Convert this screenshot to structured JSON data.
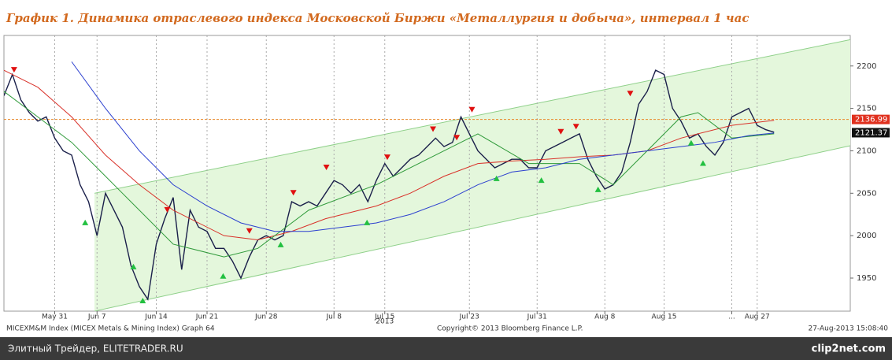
{
  "chart_data": {
    "type": "line",
    "title": "График 1.   Динамика отраслевого индекса Московской Биржи «Металлургия и добыча», интервал 1 час",
    "xlim": [
      0,
      100
    ],
    "ylim": [
      1911,
      2236
    ],
    "xticks": [
      {
        "value": 6,
        "label": "May 31"
      },
      {
        "value": 11,
        "label": "Jun 7"
      },
      {
        "value": 18,
        "label": "Jun 14"
      },
      {
        "value": 24,
        "label": "Jun 21"
      },
      {
        "value": 31,
        "label": "Jun 28"
      },
      {
        "value": 39,
        "label": "Jul 8"
      },
      {
        "value": 45,
        "label": "Jul 15"
      },
      {
        "value": 55,
        "label": "Jul 23"
      },
      {
        "value": 63,
        "label": "Jul 31"
      },
      {
        "value": 71,
        "label": "Aug 8"
      },
      {
        "value": 78,
        "label": "Aug 15"
      },
      {
        "value": 86,
        "label": "..."
      },
      {
        "value": 89,
        "label": "Aug 27"
      }
    ],
    "year_label": "2013",
    "yticks": [
      1950,
      2000,
      2050,
      2100,
      2150,
      2200
    ],
    "grid": true,
    "channel": {
      "color": "#e4f7dc",
      "edge": "#8fd08a",
      "x": [
        10.7,
        100
      ],
      "upper": [
        2050,
        2231
      ],
      "lower": [
        1911,
        2106
      ]
    },
    "series": [
      {
        "color": "#1a1f4a",
        "x": [
          0,
          1,
          2,
          3,
          4,
          5,
          6,
          7,
          8,
          9,
          10,
          11,
          12,
          13,
          14,
          15,
          16,
          17,
          18,
          19,
          20,
          21,
          22,
          23,
          24,
          25,
          26,
          27,
          28,
          29,
          30,
          31,
          32,
          33,
          34,
          35,
          36,
          37,
          38,
          39,
          40,
          41,
          42,
          43,
          44,
          45,
          46,
          47,
          48,
          49,
          50,
          51,
          52,
          53,
          54,
          55,
          56,
          57,
          58,
          59,
          60,
          61,
          62,
          63,
          64,
          65,
          66,
          67,
          68,
          69,
          70,
          71,
          72,
          73,
          74,
          75,
          76,
          77,
          78,
          79,
          80,
          81,
          82,
          83,
          84,
          85,
          86,
          87,
          88,
          89,
          90,
          91
        ],
        "values": [
          2165,
          2190,
          2160,
          2145,
          2135,
          2140,
          2115,
          2100,
          2095,
          2060,
          2040,
          2000,
          2050,
          2030,
          2010,
          1965,
          1940,
          1925,
          1990,
          2020,
          2045,
          1960,
          2030,
          2010,
          2005,
          1985,
          1985,
          1970,
          1950,
          1975,
          1995,
          2000,
          1995,
          2000,
          2040,
          2035,
          2040,
          2035,
          2050,
          2065,
          2060,
          2050,
          2060,
          2040,
          2065,
          2085,
          2070,
          2080,
          2090,
          2095,
          2105,
          2115,
          2105,
          2110,
          2140,
          2120,
          2100,
          2090,
          2080,
          2085,
          2090,
          2090,
          2080,
          2080,
          2100,
          2105,
          2110,
          2115,
          2120,
          2090,
          2070,
          2055,
          2060,
          2075,
          2110,
          2155,
          2170,
          2195,
          2190,
          2150,
          2135,
          2115,
          2120,
          2105,
          2095,
          2110,
          2140,
          2145,
          2150,
          2130,
          2125,
          2122
        ]
      },
      {
        "color": "#d9322a",
        "x": [
          0,
          4,
          8,
          12,
          16,
          20,
          26,
          30,
          34,
          38,
          44,
          48,
          52,
          56,
          60,
          64,
          68,
          72,
          76,
          80,
          86,
          91
        ],
        "values": [
          2195,
          2175,
          2140,
          2095,
          2060,
          2030,
          2000,
          1995,
          2005,
          2020,
          2035,
          2050,
          2070,
          2085,
          2088,
          2090,
          2093,
          2095,
          2100,
          2115,
          2130,
          2136
        ]
      },
      {
        "color": "#2f9a3a",
        "x": [
          0,
          4,
          8,
          14,
          20,
          26,
          30,
          36,
          44,
          52,
          56,
          62,
          68,
          72,
          76,
          80,
          82,
          86,
          91
        ],
        "values": [
          2170,
          2140,
          2110,
          2050,
          1990,
          1975,
          1985,
          2030,
          2060,
          2100,
          2120,
          2085,
          2085,
          2060,
          2100,
          2140,
          2145,
          2115,
          2120
        ]
      },
      {
        "color": "#2b3fcf",
        "x": [
          8,
          12,
          16,
          20,
          24,
          28,
          32,
          36,
          40,
          44,
          48,
          52,
          56,
          60,
          64,
          68,
          72,
          76,
          80,
          84,
          88,
          91
        ],
        "values": [
          2205,
          2150,
          2100,
          2060,
          2035,
          2015,
          2005,
          2005,
          2010,
          2015,
          2025,
          2040,
          2060,
          2075,
          2080,
          2090,
          2095,
          2100,
          2105,
          2110,
          2118,
          2121
        ]
      }
    ],
    "sell_signals": {
      "color": "#e01010",
      "x": [
        1.2,
        19.3,
        29,
        34.2,
        38.1,
        45.3,
        50.7,
        53.5,
        55.3,
        65.8,
        67.6,
        74
      ],
      "values": [
        2195,
        2030,
        2005,
        2050,
        2080,
        2092,
        2125,
        2115,
        2148,
        2122,
        2128,
        2167
      ]
    },
    "buy_signals": {
      "color": "#22c040",
      "x": [
        9.6,
        16.4,
        15.3,
        25.9,
        32.7,
        42.9,
        58.2,
        63.5,
        70.2,
        81.2,
        82.6
      ],
      "values": [
        2016,
        1924,
        1964,
        1953,
        1990,
        2016,
        2068,
        2066,
        2055,
        2110,
        2086
      ]
    },
    "reference_line": {
      "value": 2136.99,
      "color": "#e8882a"
    },
    "last_values": [
      {
        "value": 2136.99,
        "color": "#e0301e"
      },
      {
        "value": 2121.37,
        "color": "#111111"
      }
    ],
    "footer_left": "MICEXM&M Index (MICEX Metals & Mining Index) Graph 64",
    "footer_center": "Copyright© 2013 Bloomberg Finance L.P.",
    "footer_right": "27-Aug-2013 15:08:40"
  },
  "bottom_bar": {
    "left": "Элитный Трейдер, ELITETRADER.RU",
    "right": "clip2net.com"
  }
}
